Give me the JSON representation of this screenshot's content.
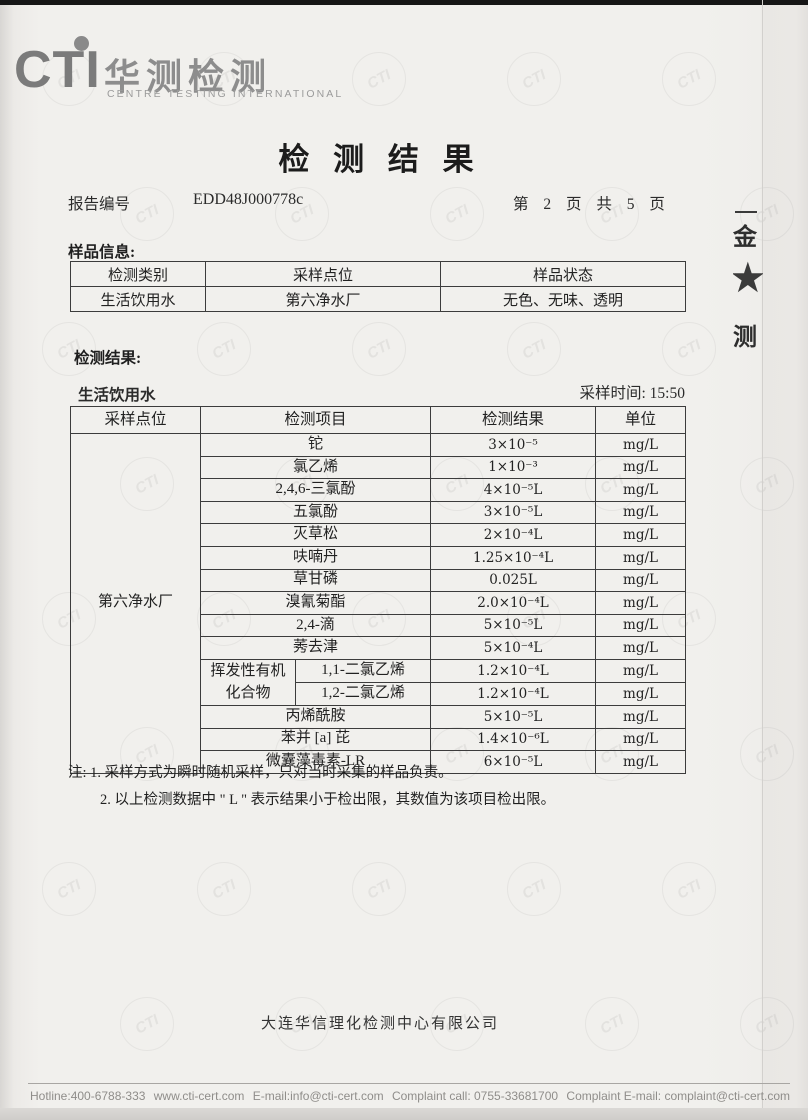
{
  "logo": {
    "cti": "CTI",
    "cn_name": "华测检测",
    "en_name": "CENTRE TESTING INTERNATIONAL"
  },
  "watermark_text": "CTI",
  "page": {
    "title": "检 测 结 果",
    "report_no_label": "报告编号",
    "report_no": "EDD48J000778c",
    "page_info": "第 2 页 共 5 页"
  },
  "sample_info": {
    "section_label": "样品信息:",
    "headers": [
      "检测类别",
      "采样点位",
      "样品状态"
    ],
    "values": [
      "生活饮用水",
      "第六净水厂",
      "无色、无味、透明"
    ]
  },
  "results_section": {
    "section_label": "检测结果:",
    "water_type": "生活饮用水",
    "sampling_time": "采样时间: 15:50",
    "table": {
      "headers": [
        "采样点位",
        "检测项目",
        "检测结果",
        "单位"
      ],
      "location": "第六净水厂",
      "voc_group_label": "挥发性有机\n化合物",
      "rows": [
        {
          "item": "铊",
          "result": "3×10⁻⁵",
          "unit": "mg/L"
        },
        {
          "item": "氯乙烯",
          "result": "1×10⁻³",
          "unit": "mg/L"
        },
        {
          "item": "2,4,6-三氯酚",
          "result": "4×10⁻⁵L",
          "unit": "mg/L"
        },
        {
          "item": "五氯酚",
          "result": "3×10⁻⁵L",
          "unit": "mg/L"
        },
        {
          "item": "灭草松",
          "result": "2×10⁻⁴L",
          "unit": "mg/L"
        },
        {
          "item": "呋喃丹",
          "result": "1.25×10⁻⁴L",
          "unit": "mg/L"
        },
        {
          "item": "草甘磷",
          "result": "0.025L",
          "unit": "mg/L"
        },
        {
          "item": "溴氰菊酯",
          "result": "2.0×10⁻⁴L",
          "unit": "mg/L"
        },
        {
          "item": "2,4-滴",
          "result": "5×10⁻⁵L",
          "unit": "mg/L"
        },
        {
          "item": "莠去津",
          "result": "5×10⁻⁴L",
          "unit": "mg/L"
        },
        {
          "item": "1,1-二氯乙烯",
          "result": "1.2×10⁻⁴L",
          "unit": "mg/L",
          "sub": true,
          "group_start": true
        },
        {
          "item": "1,2-二氯乙烯",
          "result": "1.2×10⁻⁴L",
          "unit": "mg/L",
          "sub": true
        },
        {
          "item": "丙烯酰胺",
          "result": "5×10⁻⁵L",
          "unit": "mg/L"
        },
        {
          "item": "苯并 [a] 芘",
          "result": "1.4×10⁻⁶L",
          "unit": "mg/L"
        },
        {
          "item": "微囊藻毒素-LR",
          "result": "6×10⁻⁵L",
          "unit": "mg/L"
        }
      ]
    }
  },
  "notes": {
    "n1": "注: 1. 采样方式为瞬时随机采样，只对当时采集的样品负责。",
    "n2": "2. 以上检测数据中 \" L \" 表示结果小于检出限，其数值为该项目检出限。"
  },
  "footer": {
    "company": "大连华信理化检测中心有限公司",
    "hotline": "Hotline:400-6788-333",
    "website": "www.cti-cert.com",
    "email": "E-mail:info@cti-cert.com",
    "complaint_call": "Complaint call: 0755-33681700",
    "complaint_email": "Complaint E-mail: complaint@cti-cert.com"
  },
  "edge_seal": {
    "char_top": "金",
    "star": "★",
    "char_bottom": "测"
  }
}
